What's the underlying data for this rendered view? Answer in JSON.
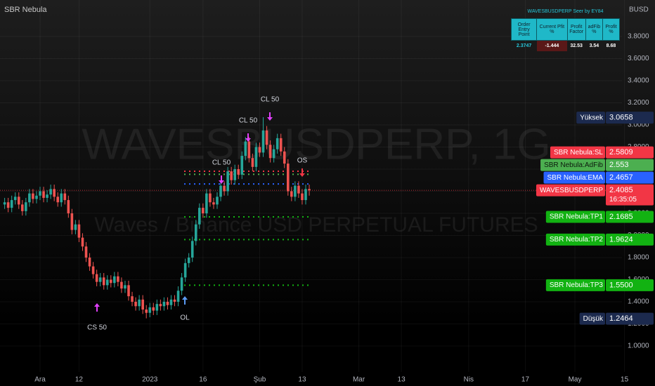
{
  "chart_data": {
    "type": "candlestick",
    "title": "WAVESBUSDPERP, 1G",
    "subtitle": "Waves / Binance USD PERPETUAL FUTURES",
    "indicator": "SBR Nebula",
    "currency": "BUSD",
    "categories": [
      null,
      null,
      null,
      null,
      null,
      null,
      null,
      null,
      null,
      null,
      "Ara",
      null,
      null,
      null,
      null,
      null,
      null,
      null,
      null,
      null,
      null,
      "12",
      null,
      null,
      null,
      null,
      null,
      null,
      null,
      null,
      null,
      null,
      null,
      null,
      null,
      null,
      null,
      null,
      null,
      null,
      null,
      "2023",
      null,
      null,
      null,
      null,
      null,
      null,
      null,
      null,
      null,
      null,
      null,
      null,
      null,
      null,
      "16",
      null,
      null,
      null,
      null,
      null,
      null,
      null,
      null,
      null,
      null,
      null,
      null,
      null,
      null,
      null,
      "Şub",
      null,
      null,
      null,
      null,
      null,
      null,
      null,
      null,
      null,
      null,
      null,
      "13",
      null,
      null,
      null,
      null,
      null,
      null,
      null,
      null,
      null,
      null,
      null,
      null,
      null,
      null,
      null,
      "Mar",
      null,
      null,
      null,
      null,
      null,
      null,
      null,
      null,
      null,
      null,
      null,
      "13",
      null,
      null,
      null,
      null,
      null,
      null,
      null,
      null,
      null,
      null,
      null,
      null,
      null,
      null,
      null,
      null,
      null,
      null,
      "Nis",
      null,
      null,
      null,
      null,
      null,
      null,
      null,
      null,
      null,
      null,
      null,
      null,
      null,
      null,
      null,
      "17",
      null,
      null,
      null,
      null,
      null,
      null,
      null,
      null,
      null,
      null,
      null,
      null,
      null,
      "May",
      null,
      null,
      null,
      null,
      null,
      null,
      null,
      null,
      null,
      null,
      null,
      null,
      null,
      "15",
      null
    ],
    "open": [
      2.28,
      2.3,
      2.25,
      2.32,
      2.35,
      2.28,
      2.22,
      2.3,
      2.38,
      2.33,
      2.36,
      2.4,
      2.34,
      2.37,
      2.42,
      2.35,
      2.3,
      2.38,
      2.32,
      2.2,
      2.05,
      2.1,
      1.98,
      1.9,
      1.8,
      1.72,
      1.65,
      1.58,
      1.62,
      1.55,
      1.6,
      1.57,
      1.63,
      1.58,
      1.52,
      1.55,
      1.45,
      1.4,
      1.36,
      1.42,
      1.33,
      1.3,
      1.35,
      1.32,
      1.38,
      1.36,
      1.4,
      1.37,
      1.42,
      1.4,
      1.5,
      1.62,
      1.75,
      1.8,
      1.95,
      2.1,
      2.25,
      2.2,
      2.38,
      2.3,
      2.28,
      2.35,
      2.45,
      2.4,
      2.58,
      2.5,
      2.6,
      2.55,
      2.72,
      2.85,
      2.7,
      2.62,
      2.8,
      2.75,
      2.95,
      2.82,
      2.7,
      2.78,
      2.88,
      2.76,
      2.65,
      2.4,
      2.35,
      2.45,
      2.38,
      2.32,
      2.42,
      null,
      null,
      null,
      null,
      null,
      null,
      null,
      null,
      null,
      null,
      null,
      null,
      null,
      null,
      null,
      null,
      null,
      null,
      null,
      null,
      null,
      null,
      null,
      null,
      null,
      null,
      null,
      null,
      null,
      null,
      null,
      null,
      null,
      null,
      null,
      null,
      null,
      null,
      null,
      null,
      null,
      null,
      null,
      null,
      null,
      null,
      null,
      null,
      null,
      null,
      null,
      null,
      null,
      null,
      null,
      null,
      null,
      null,
      null,
      null,
      null,
      null,
      null,
      null,
      null,
      null,
      null,
      null,
      null,
      null,
      null,
      null,
      null,
      null,
      null,
      null,
      null,
      null,
      null,
      null,
      null,
      null,
      null,
      null,
      null,
      null,
      null,
      null,
      null,
      null
    ],
    "high": [
      2.34,
      2.34,
      2.36,
      2.39,
      2.39,
      2.32,
      2.34,
      2.42,
      2.42,
      2.4,
      2.44,
      2.44,
      2.41,
      2.46,
      2.46,
      2.39,
      2.42,
      2.42,
      2.36,
      2.24,
      2.14,
      2.14,
      2.02,
      1.94,
      1.84,
      1.76,
      1.69,
      1.66,
      1.66,
      1.64,
      1.64,
      1.67,
      1.67,
      1.62,
      1.59,
      1.59,
      1.49,
      1.44,
      1.46,
      1.46,
      1.37,
      1.39,
      1.39,
      1.42,
      1.42,
      1.44,
      1.44,
      1.46,
      1.46,
      1.54,
      1.66,
      1.79,
      1.84,
      1.99,
      2.14,
      2.29,
      2.29,
      2.42,
      2.42,
      2.34,
      2.39,
      2.49,
      2.49,
      2.62,
      2.62,
      2.64,
      2.64,
      2.76,
      2.89,
      2.89,
      2.74,
      2.84,
      2.84,
      3.07,
      2.99,
      2.86,
      2.82,
      2.92,
      2.92,
      2.8,
      2.69,
      2.44,
      2.49,
      2.49,
      2.42,
      2.46,
      2.46,
      null,
      null,
      null,
      null,
      null,
      null,
      null,
      null,
      null,
      null,
      null,
      null,
      null,
      null,
      null,
      null,
      null,
      null,
      null,
      null,
      null,
      null,
      null,
      null,
      null,
      null,
      null,
      null,
      null,
      null,
      null,
      null,
      null,
      null,
      null,
      null,
      null,
      null,
      null,
      null,
      null,
      null,
      null,
      null,
      null,
      null,
      null,
      null,
      null,
      null,
      null,
      null,
      null,
      null,
      null,
      null,
      null,
      null,
      null,
      null,
      null,
      null,
      null,
      null,
      null,
      null,
      null,
      null,
      null,
      null,
      null,
      null,
      null,
      null,
      null,
      null,
      null,
      null,
      null,
      null,
      null,
      null,
      null,
      null,
      null,
      null,
      null,
      null,
      null,
      null
    ],
    "low": [
      2.24,
      2.21,
      2.21,
      2.28,
      2.24,
      2.18,
      2.18,
      2.26,
      2.29,
      2.29,
      2.32,
      2.3,
      2.3,
      2.33,
      2.31,
      2.26,
      2.26,
      2.28,
      2.16,
      2.01,
      2.01,
      1.94,
      1.86,
      1.76,
      1.68,
      1.61,
      1.54,
      1.54,
      1.51,
      1.51,
      1.53,
      1.53,
      1.54,
      1.48,
      1.48,
      1.41,
      1.36,
      1.32,
      1.32,
      1.29,
      1.25,
      1.26,
      1.28,
      1.28,
      1.32,
      1.32,
      1.33,
      1.33,
      1.36,
      1.36,
      1.46,
      1.58,
      1.71,
      1.76,
      1.91,
      2.06,
      2.16,
      2.16,
      2.26,
      2.24,
      2.24,
      2.31,
      2.36,
      2.36,
      2.46,
      2.46,
      2.51,
      2.51,
      2.68,
      2.66,
      2.58,
      2.58,
      2.71,
      2.71,
      2.78,
      2.66,
      2.66,
      2.74,
      2.72,
      2.61,
      2.36,
      2.31,
      2.31,
      2.34,
      2.28,
      2.28,
      2.36,
      null,
      null,
      null,
      null,
      null,
      null,
      null,
      null,
      null,
      null,
      null,
      null,
      null,
      null,
      null,
      null,
      null,
      null,
      null,
      null,
      null,
      null,
      null,
      null,
      null,
      null,
      null,
      null,
      null,
      null,
      null,
      null,
      null,
      null,
      null,
      null,
      null,
      null,
      null,
      null,
      null,
      null,
      null,
      null,
      null,
      null,
      null,
      null,
      null,
      null,
      null,
      null,
      null,
      null,
      null,
      null,
      null,
      null,
      null,
      null,
      null,
      null,
      null,
      null,
      null,
      null,
      null,
      null,
      null,
      null,
      null,
      null,
      null,
      null,
      null,
      null,
      null,
      null,
      null,
      null,
      null,
      null,
      null,
      null,
      null,
      null,
      null,
      null,
      null,
      null
    ],
    "close": [
      2.3,
      2.25,
      2.32,
      2.35,
      2.28,
      2.22,
      2.3,
      2.38,
      2.33,
      2.36,
      2.4,
      2.34,
      2.37,
      2.42,
      2.35,
      2.3,
      2.38,
      2.32,
      2.2,
      2.05,
      2.1,
      1.98,
      1.9,
      1.8,
      1.72,
      1.65,
      1.58,
      1.62,
      1.55,
      1.6,
      1.57,
      1.63,
      1.58,
      1.52,
      1.55,
      1.45,
      1.4,
      1.36,
      1.42,
      1.33,
      1.3,
      1.35,
      1.32,
      1.38,
      1.36,
      1.4,
      1.37,
      1.42,
      1.4,
      1.5,
      1.62,
      1.75,
      1.8,
      1.95,
      2.1,
      2.25,
      2.2,
      2.38,
      2.3,
      2.28,
      2.35,
      2.45,
      2.4,
      2.58,
      2.5,
      2.6,
      2.55,
      2.72,
      2.85,
      2.7,
      2.62,
      2.8,
      2.75,
      2.95,
      2.82,
      2.7,
      2.78,
      2.88,
      2.76,
      2.65,
      2.4,
      2.35,
      2.45,
      2.38,
      2.32,
      2.42,
      2.4085,
      null,
      null,
      null,
      null,
      null,
      null,
      null,
      null,
      null,
      null,
      null,
      null,
      null,
      null,
      null,
      null,
      null,
      null,
      null,
      null,
      null,
      null,
      null,
      null,
      null,
      null,
      null,
      null,
      null,
      null,
      null,
      null,
      null,
      null,
      null,
      null,
      null,
      null,
      null,
      null,
      null,
      null,
      null,
      null,
      null,
      null,
      null,
      null,
      null,
      null,
      null,
      null,
      null,
      null,
      null,
      null,
      null,
      null,
      null,
      null,
      null,
      null,
      null,
      null,
      null,
      null,
      null,
      null,
      null,
      null,
      null,
      null,
      null,
      null,
      null,
      null,
      null,
      null,
      null,
      null,
      null,
      null,
      null,
      null,
      null,
      null,
      null,
      null,
      null,
      null
    ],
    "up_color": "#26a69a",
    "down_color": "#ef5350",
    "ylim": [
      0.765,
      4.13
    ],
    "yticks": [
      {
        "value": 1.0,
        "label": "1.0000"
      },
      {
        "value": 1.2,
        "label": "1.2000"
      },
      {
        "value": 1.4,
        "label": "1.4000"
      },
      {
        "value": 1.6,
        "label": "1.6000"
      },
      {
        "value": 1.8,
        "label": "1.8000"
      },
      {
        "value": 2.0,
        "label": "2.0000"
      },
      {
        "value": 2.2,
        "label": "2.2000"
      },
      {
        "value": 2.4,
        "label": "2.4000"
      },
      {
        "value": 2.6,
        "label": "2.6000"
      },
      {
        "value": 2.8,
        "label": "2.8000"
      },
      {
        "value": 3.0,
        "label": "3.0000"
      },
      {
        "value": 3.2,
        "label": "3.2000"
      },
      {
        "value": 3.4,
        "label": "3.4000"
      },
      {
        "value": 3.6,
        "label": "3.6000"
      },
      {
        "value": 3.8,
        "label": "3.8000"
      }
    ],
    "grid": true,
    "levels": [
      {
        "label": "SBR Nebula:SL",
        "value": 2.5809,
        "color": "#f23645"
      },
      {
        "label": "SBR Nebula:AdFib",
        "value": 2.553,
        "color": "#4caf50"
      },
      {
        "label": "SBR Nebula:EMA",
        "value": 2.4657,
        "color": "#2962ff"
      },
      {
        "label": "SBR Nebula:TP1",
        "value": 2.1685,
        "color": "#12b212"
      },
      {
        "label": "SBR Nebula:TP2",
        "value": 1.9624,
        "color": "#12b212"
      },
      {
        "label": "SBR Nebula:TP3",
        "value": 1.55,
        "value_label": "1.5500",
        "color": "#12b212"
      }
    ],
    "current": {
      "label": "WAVESBUSDPERP",
      "value": 2.4085,
      "time": "16:35:05",
      "color": "#f23645"
    },
    "high_mark": {
      "label": "Yüksek",
      "value": 3.0658
    },
    "low_mark": {
      "label": "Düşük",
      "value": 1.2464
    },
    "annotations": [
      {
        "text": "CS 50"
      },
      {
        "text": "OL"
      },
      {
        "text": "CL 50"
      },
      {
        "text": "CL 50"
      },
      {
        "text": "CL 50"
      },
      {
        "text": "OS"
      }
    ],
    "table": {
      "title": "WAVESBUSDPERP Seer by EY84",
      "headers": [
        "Order Entry Point",
        "Current Pfit %",
        "Profit Factor",
        "adFib %",
        "Profit %"
      ],
      "row": [
        2.3747,
        -1.444,
        32.53,
        3.54,
        8.68
      ]
    }
  }
}
